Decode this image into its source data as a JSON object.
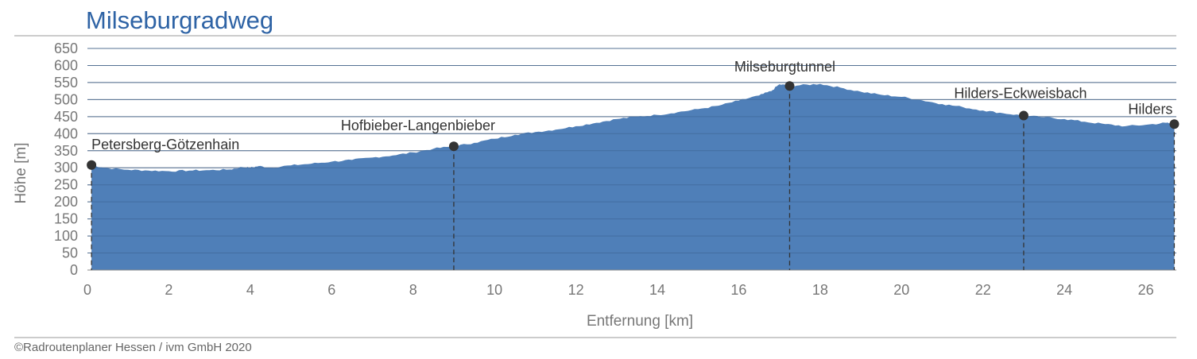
{
  "title": "Milseburgradweg",
  "copyright": "©Radroutenplaner Hessen / ivm GmbH 2020",
  "colors": {
    "title": "#2e63a5",
    "area": "#4f7fb8",
    "grid": "#8a8a8a",
    "marker": "#333333"
  },
  "chart_data": {
    "type": "area",
    "title": "Milseburgradweg",
    "xlabel": "Entfernung [km]",
    "ylabel": "Höhe [m]",
    "xlim": [
      0,
      26.75
    ],
    "ylim": [
      0,
      650
    ],
    "xticks": [
      0,
      2,
      4,
      6,
      8,
      10,
      12,
      14,
      16,
      18,
      20,
      22,
      24,
      26
    ],
    "yticks": [
      0,
      50,
      100,
      150,
      200,
      250,
      300,
      350,
      400,
      450,
      500,
      550,
      600,
      650
    ],
    "grid": "horizontal",
    "points": [
      [
        0.1,
        308
      ],
      [
        0.4,
        300
      ],
      [
        1.0,
        294
      ],
      [
        1.5,
        292
      ],
      [
        2.0,
        290
      ],
      [
        2.5,
        292
      ],
      [
        3.0,
        293
      ],
      [
        3.5,
        295
      ],
      [
        3.8,
        302
      ],
      [
        4.0,
        300
      ],
      [
        4.2,
        305
      ],
      [
        4.5,
        300
      ],
      [
        5.0,
        307
      ],
      [
        5.5,
        312
      ],
      [
        6.0,
        318
      ],
      [
        6.5,
        323
      ],
      [
        7.0,
        330
      ],
      [
        7.5,
        336
      ],
      [
        8.0,
        345
      ],
      [
        8.5,
        356
      ],
      [
        9.0,
        363
      ],
      [
        9.5,
        373
      ],
      [
        10.0,
        385
      ],
      [
        10.5,
        397
      ],
      [
        11.0,
        405
      ],
      [
        11.5,
        412
      ],
      [
        12.0,
        422
      ],
      [
        12.5,
        432
      ],
      [
        13.0,
        443
      ],
      [
        13.5,
        450
      ],
      [
        14.0,
        455
      ],
      [
        14.5,
        463
      ],
      [
        15.0,
        472
      ],
      [
        15.5,
        482
      ],
      [
        16.0,
        497
      ],
      [
        16.5,
        512
      ],
      [
        16.8,
        525
      ],
      [
        17.0,
        545
      ],
      [
        17.25,
        540
      ],
      [
        17.5,
        542
      ],
      [
        18.0,
        546
      ],
      [
        18.5,
        535
      ],
      [
        19.0,
        523
      ],
      [
        19.5,
        514
      ],
      [
        20.0,
        508
      ],
      [
        20.5,
        498
      ],
      [
        21.0,
        487
      ],
      [
        21.5,
        478
      ],
      [
        22.0,
        468
      ],
      [
        22.5,
        460
      ],
      [
        23.0,
        453
      ],
      [
        23.5,
        448
      ],
      [
        24.0,
        443
      ],
      [
        24.5,
        435
      ],
      [
        25.0,
        428
      ],
      [
        25.5,
        422
      ],
      [
        26.0,
        426
      ],
      [
        26.5,
        432
      ],
      [
        26.7,
        428
      ]
    ],
    "markers": [
      {
        "label": "Petersberg-Götzenhain",
        "x": 0.1,
        "y": 308
      },
      {
        "label": "Hofbieber-Langenbieber",
        "x": 9.0,
        "y": 363
      },
      {
        "label": "Milseburgtunnel",
        "x": 17.25,
        "y": 540
      },
      {
        "label": "Hilders-Eckweisbach",
        "x": 23.0,
        "y": 453
      },
      {
        "label": "Hilders",
        "x": 26.7,
        "y": 428
      }
    ]
  }
}
